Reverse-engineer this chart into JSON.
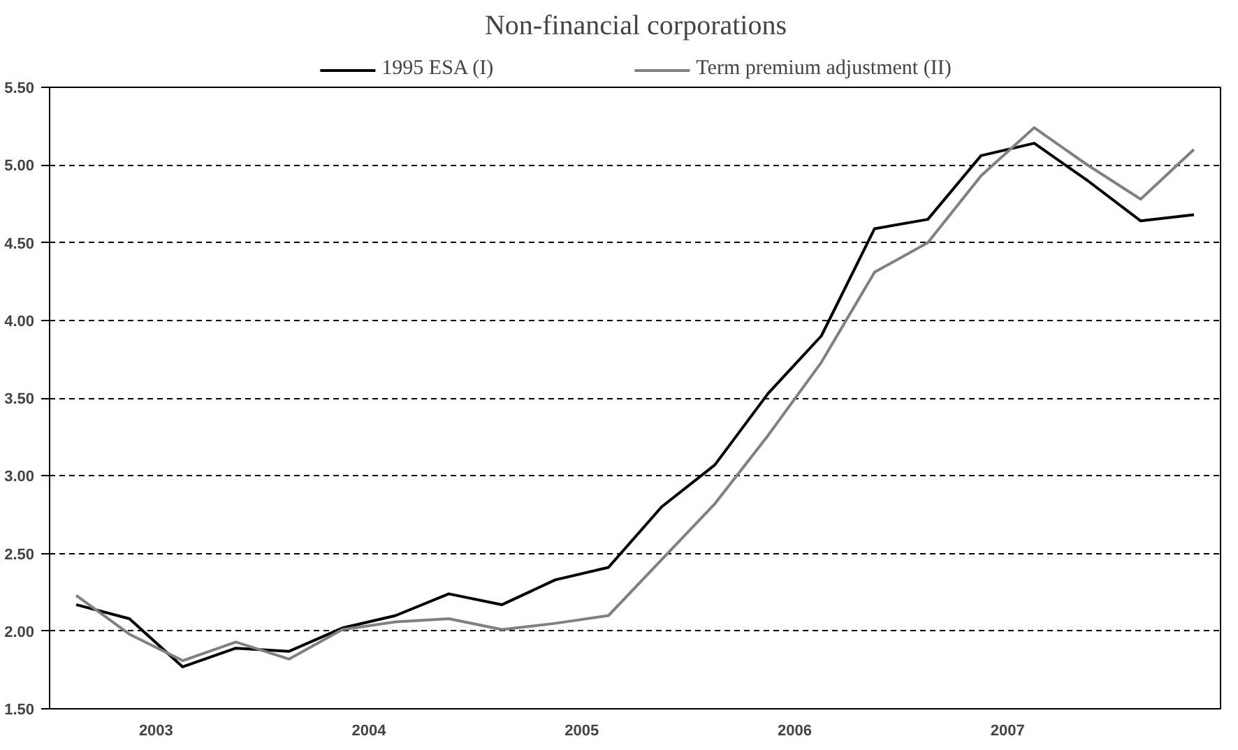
{
  "chart_data": {
    "type": "line",
    "title": "Non-financial corporations",
    "x": [
      2003.125,
      2003.375,
      2003.625,
      2003.875,
      2004.125,
      2004.375,
      2004.625,
      2004.875,
      2005.125,
      2005.375,
      2005.625,
      2005.875,
      2006.125,
      2006.375,
      2006.625,
      2006.875,
      2007.125,
      2007.375,
      2007.625,
      2007.875,
      2008.125,
      2008.375
    ],
    "series": [
      {
        "name": "1995 ESA (I)",
        "color": "#000000",
        "values": [
          2.17,
          2.08,
          1.77,
          1.89,
          1.87,
          2.02,
          2.1,
          2.24,
          2.17,
          2.33,
          2.41,
          2.8,
          3.07,
          3.53,
          3.9,
          4.59,
          4.65,
          5.06,
          5.14,
          4.9,
          4.64,
          4.68
        ]
      },
      {
        "name": "Term premium adjustment (II)",
        "color": "#808080",
        "values": [
          2.23,
          1.98,
          1.81,
          1.93,
          1.82,
          2.01,
          2.06,
          2.08,
          2.01,
          2.05,
          2.1,
          2.46,
          2.82,
          3.26,
          3.73,
          4.31,
          4.5,
          4.93,
          5.24,
          5.0,
          4.78,
          5.1
        ]
      }
    ],
    "xlim": [
      2003.0,
      2008.5
    ],
    "xticks": [
      {
        "value": 2003.5,
        "label": "2003"
      },
      {
        "value": 2004.5,
        "label": "2004"
      },
      {
        "value": 2005.5,
        "label": "2005"
      },
      {
        "value": 2006.5,
        "label": "2006"
      },
      {
        "value": 2007.5,
        "label": "2007"
      }
    ],
    "ylim": [
      1.5,
      5.5
    ],
    "yticks": [
      {
        "value": 1.5,
        "label": "1.50"
      },
      {
        "value": 2.0,
        "label": "2.00"
      },
      {
        "value": 2.5,
        "label": "2.50"
      },
      {
        "value": 3.0,
        "label": "3.00"
      },
      {
        "value": 3.5,
        "label": "3.50"
      },
      {
        "value": 4.0,
        "label": "4.00"
      },
      {
        "value": 4.5,
        "label": "4.50"
      },
      {
        "value": 5.0,
        "label": "5.00"
      },
      {
        "value": 5.5,
        "label": "5.50"
      }
    ],
    "grid": "y",
    "legend": "top",
    "line_style": "solid",
    "marker": "none"
  }
}
